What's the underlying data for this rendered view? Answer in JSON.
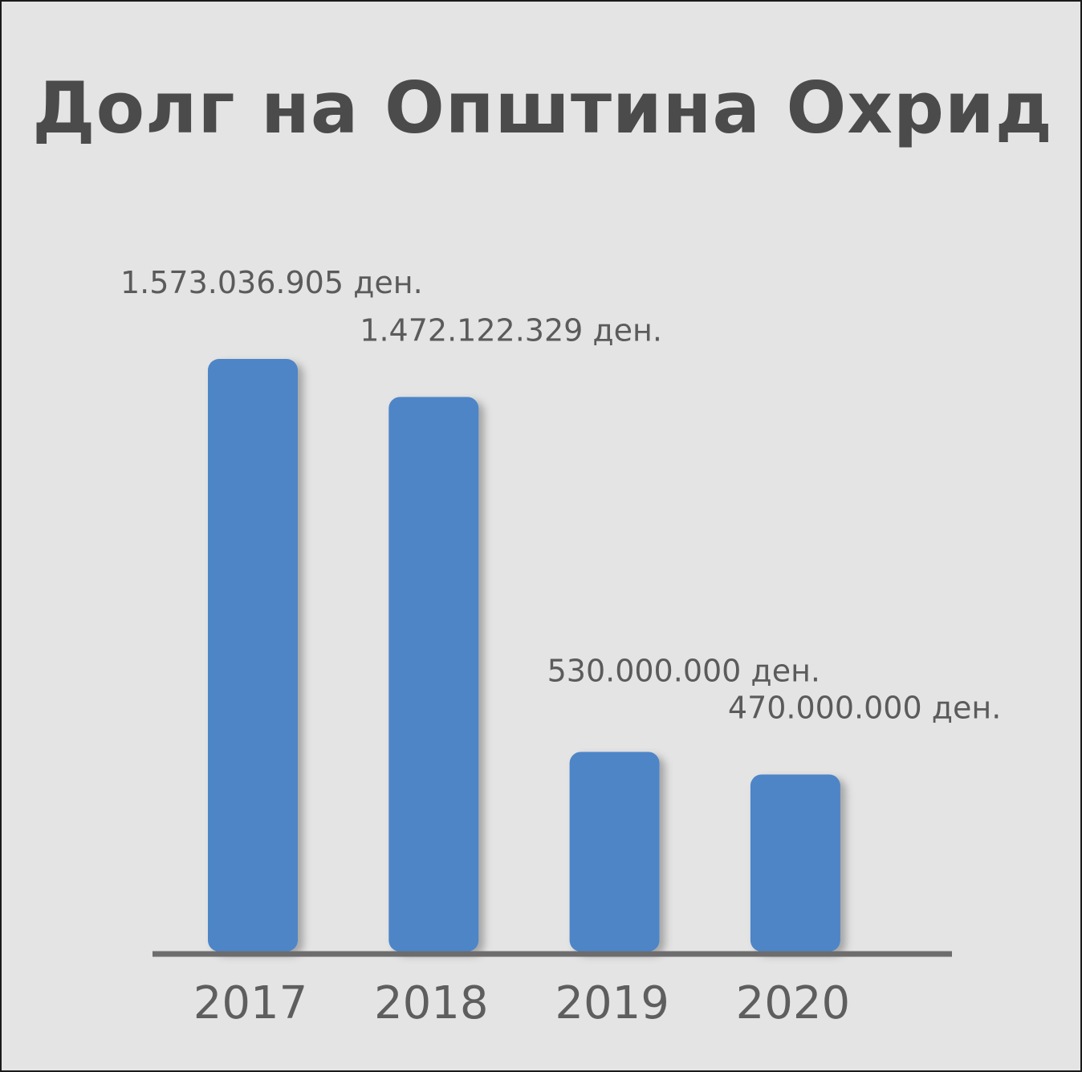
{
  "chart_data": {
    "type": "bar",
    "title": "Долг на Општина Охрид",
    "categories": [
      "2017",
      "2018",
      "2019",
      "2020"
    ],
    "values": [
      1573036905,
      1472122329,
      530000000,
      470000000
    ],
    "value_labels": [
      "1.573.036.905 ден.",
      "1.472.122.329 ден.",
      "530.000.000 ден.",
      "470.000.000 ден."
    ],
    "ylim": [
      0,
      1573036905
    ],
    "bar_color": "#4d85c7",
    "grid": false,
    "legend": "none"
  }
}
